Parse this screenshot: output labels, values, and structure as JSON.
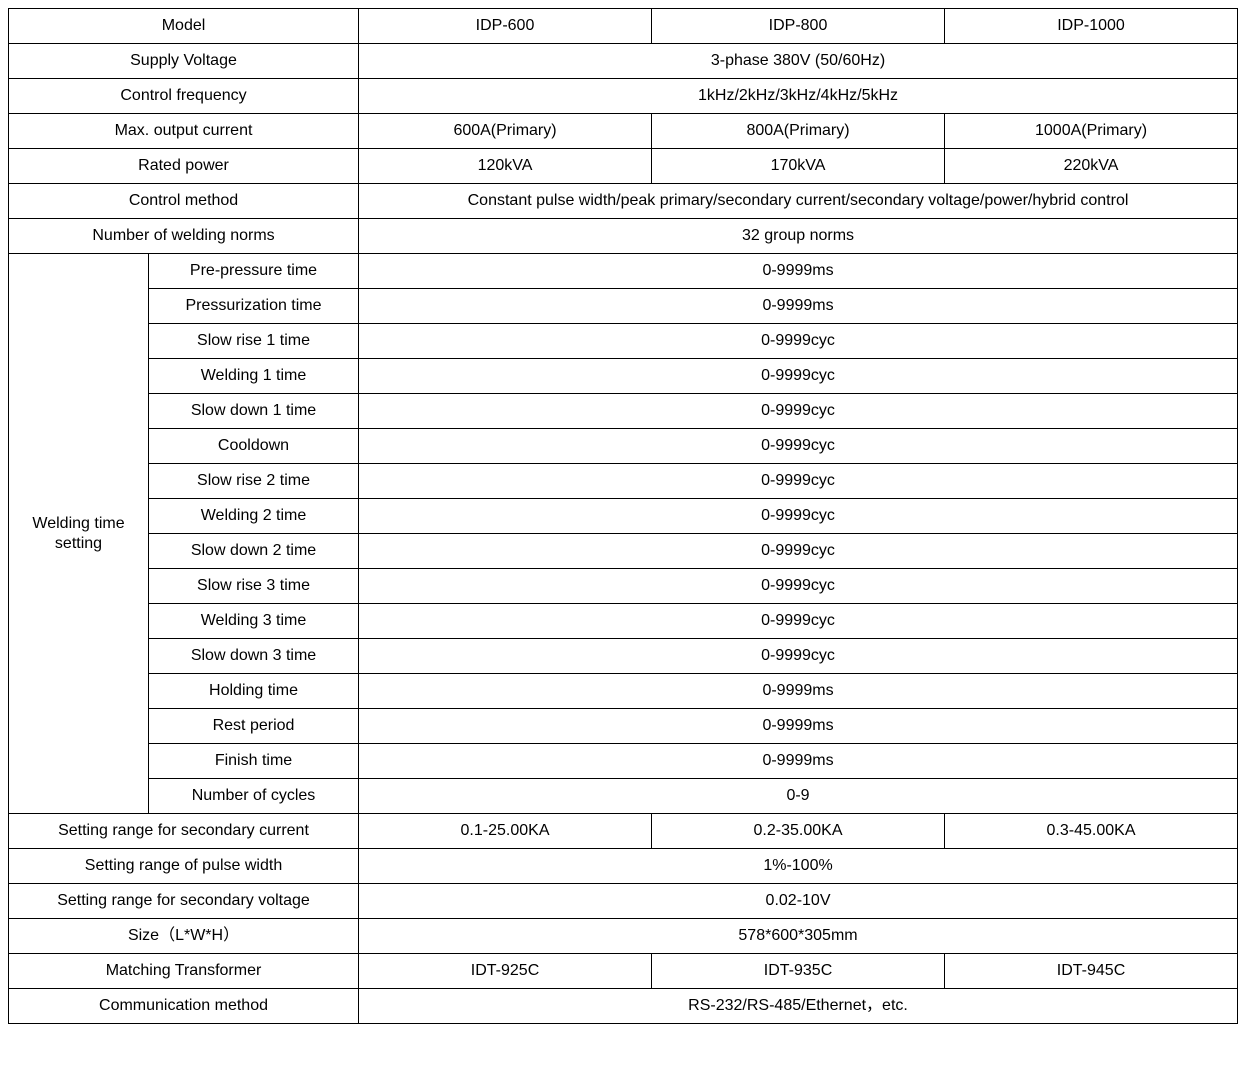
{
  "header": {
    "model": "Model",
    "m1": "IDP-600",
    "m2": "IDP-800",
    "m3": "IDP-1000"
  },
  "rows": {
    "supply_voltage": {
      "label": "Supply Voltage",
      "value": "3-phase 380V (50/60Hz)"
    },
    "control_frequency": {
      "label": "Control frequency",
      "value": "1kHz/2kHz/3kHz/4kHz/5kHz"
    },
    "max_output_current": {
      "label": "Max. output current",
      "v1": "600A(Primary)",
      "v2": "800A(Primary)",
      "v3": "1000A(Primary)"
    },
    "rated_power": {
      "label": "Rated power",
      "v1": "120kVA",
      "v2": "170kVA",
      "v3": "220kVA"
    },
    "control_method": {
      "label": "Control method",
      "value": "Constant pulse width/peak primary/secondary current/secondary voltage/power/hybrid control"
    },
    "welding_norms": {
      "label": "Number of welding norms",
      "value": "32 group norms"
    },
    "welding_time": {
      "group_label": "Welding time setting",
      "items": [
        {
          "label": "Pre-pressure time",
          "value": "0-9999ms"
        },
        {
          "label": "Pressurization time",
          "value": "0-9999ms"
        },
        {
          "label": "Slow rise 1 time",
          "value": "0-9999cyc"
        },
        {
          "label": "Welding 1 time",
          "value": "0-9999cyc"
        },
        {
          "label": "Slow down 1 time",
          "value": "0-9999cyc"
        },
        {
          "label": "Cooldown",
          "value": "0-9999cyc"
        },
        {
          "label": "Slow rise 2 time",
          "value": "0-9999cyc"
        },
        {
          "label": "Welding 2 time",
          "value": "0-9999cyc"
        },
        {
          "label": "Slow down 2 time",
          "value": "0-9999cyc"
        },
        {
          "label": "Slow rise 3 time",
          "value": "0-9999cyc"
        },
        {
          "label": "Welding 3 time",
          "value": "0-9999cyc"
        },
        {
          "label": "Slow down 3 time",
          "value": "0-9999cyc"
        },
        {
          "label": "Holding time",
          "value": "0-9999ms"
        },
        {
          "label": "Rest period",
          "value": "0-9999ms"
        },
        {
          "label": "Finish time",
          "value": "0-9999ms"
        },
        {
          "label": "Number of cycles",
          "value": "0-9"
        }
      ]
    },
    "secondary_current": {
      "label": "Setting range for secondary current",
      "v1": "0.1-25.00KA",
      "v2": "0.2-35.00KA",
      "v3": "0.3-45.00KA"
    },
    "pulse_width": {
      "label": "Setting range of pulse width",
      "value": "1%-100%"
    },
    "secondary_voltage": {
      "label": "Setting range for secondary voltage",
      "value": "0.02-10V"
    },
    "size": {
      "label": "Size（L*W*H）",
      "value": "578*600*305mm"
    },
    "transformer": {
      "label": "Matching Transformer",
      "v1": "IDT-925C",
      "v2": "IDT-935C",
      "v3": "IDT-945C"
    },
    "communication": {
      "label": "Communication method",
      "value": "RS-232/RS-485/Ethernet，etc."
    }
  }
}
